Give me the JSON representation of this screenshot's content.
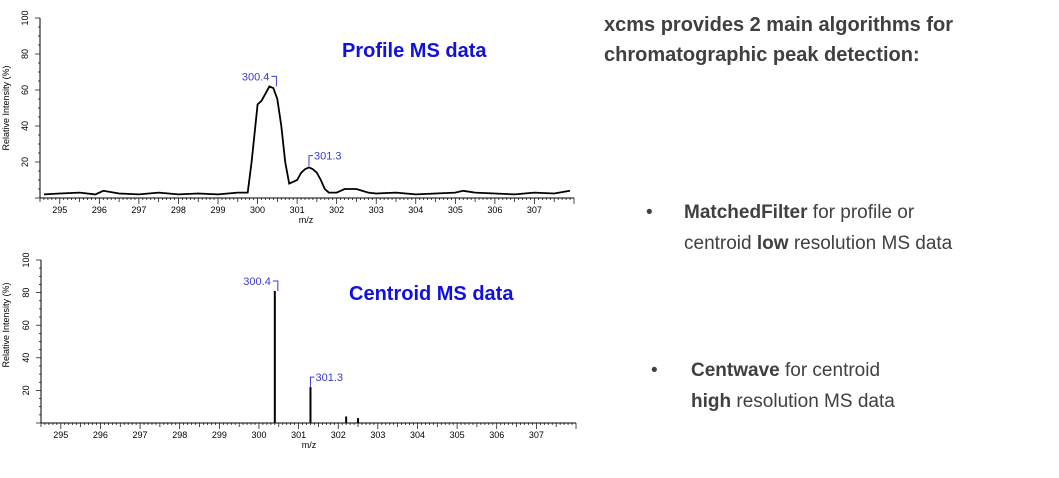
{
  "chart_data": [
    {
      "type": "line",
      "title": "Profile MS data",
      "xlabel": "m/z",
      "ylabel": "Relative Intensity (%)",
      "xlim": [
        294.5,
        308.0
      ],
      "ylim": [
        0,
        100
      ],
      "x_ticks": [
        "295",
        "296",
        "297",
        "298",
        "299",
        "300",
        "301",
        "302",
        "303",
        "304",
        "305",
        "306",
        "307"
      ],
      "y_ticks": [
        "20",
        "40",
        "60",
        "80",
        "100"
      ],
      "peak_labels": [
        {
          "text": "300.4",
          "x": 300.4,
          "y": 62
        },
        {
          "text": "301.3",
          "x": 301.3,
          "y": 18
        }
      ],
      "series": [
        {
          "x": [
            294.6,
            295.0,
            295.5,
            295.9,
            296.1,
            296.5,
            297.0,
            297.5,
            298.0,
            298.5,
            299.0,
            299.5,
            299.75,
            299.85,
            300.0,
            300.1,
            300.2,
            300.3,
            300.4,
            300.5,
            300.6,
            300.7,
            300.8,
            300.9,
            301.0,
            301.1,
            301.2,
            301.3,
            301.4,
            301.5,
            301.6,
            301.7,
            301.8,
            302.0,
            302.2,
            302.5,
            302.8,
            303.0,
            303.5,
            304.0,
            304.5,
            305.0,
            305.2,
            305.5,
            306.0,
            306.5,
            307.0,
            307.5,
            307.9
          ],
          "values": [
            2,
            2.5,
            3,
            2,
            4,
            2.5,
            2,
            3,
            2,
            2.5,
            2,
            3,
            3,
            20,
            52,
            54,
            58,
            62,
            61,
            55,
            40,
            20,
            8,
            9,
            10,
            14,
            16,
            17,
            16,
            14,
            10,
            5,
            3,
            3,
            5,
            5,
            3,
            2.5,
            3,
            2,
            2.5,
            3,
            4,
            3,
            2.5,
            2,
            3,
            2.5,
            4
          ]
        }
      ]
    },
    {
      "type": "bar",
      "title": "Centroid MS data",
      "xlabel": "m/z",
      "ylabel": "Relative Intensity (%)",
      "xlim": [
        294.5,
        308.0
      ],
      "ylim": [
        0,
        100
      ],
      "x_ticks": [
        "295",
        "296",
        "297",
        "298",
        "299",
        "300",
        "301",
        "302",
        "303",
        "304",
        "305",
        "306",
        "307"
      ],
      "y_ticks": [
        "20",
        "40",
        "60",
        "80",
        "100"
      ],
      "peak_labels": [
        {
          "text": "300.4",
          "x": 300.4,
          "y": 81
        },
        {
          "text": "301.3",
          "x": 301.3,
          "y": 22
        }
      ],
      "series": [
        {
          "x": [
            300.4,
            301.3,
            302.2,
            302.5
          ],
          "values": [
            81,
            22,
            4,
            3
          ]
        }
      ]
    }
  ],
  "heading": "xcms provides 2 main algorithms for chromatographic peak detection:",
  "bullets": [
    {
      "symbol": "•",
      "line1_bold": "MatchedFilter",
      "line1_rest": " for profile or",
      "line2_pre": "centroid ",
      "line2_bold": "low",
      "line2_rest": " resolution MS data"
    },
    {
      "symbol": "•",
      "line1_bold": "Centwave",
      "line1_rest": " for centroid",
      "line2_pre": "",
      "line2_bold": "high",
      "line2_rest": " resolution MS data"
    }
  ]
}
